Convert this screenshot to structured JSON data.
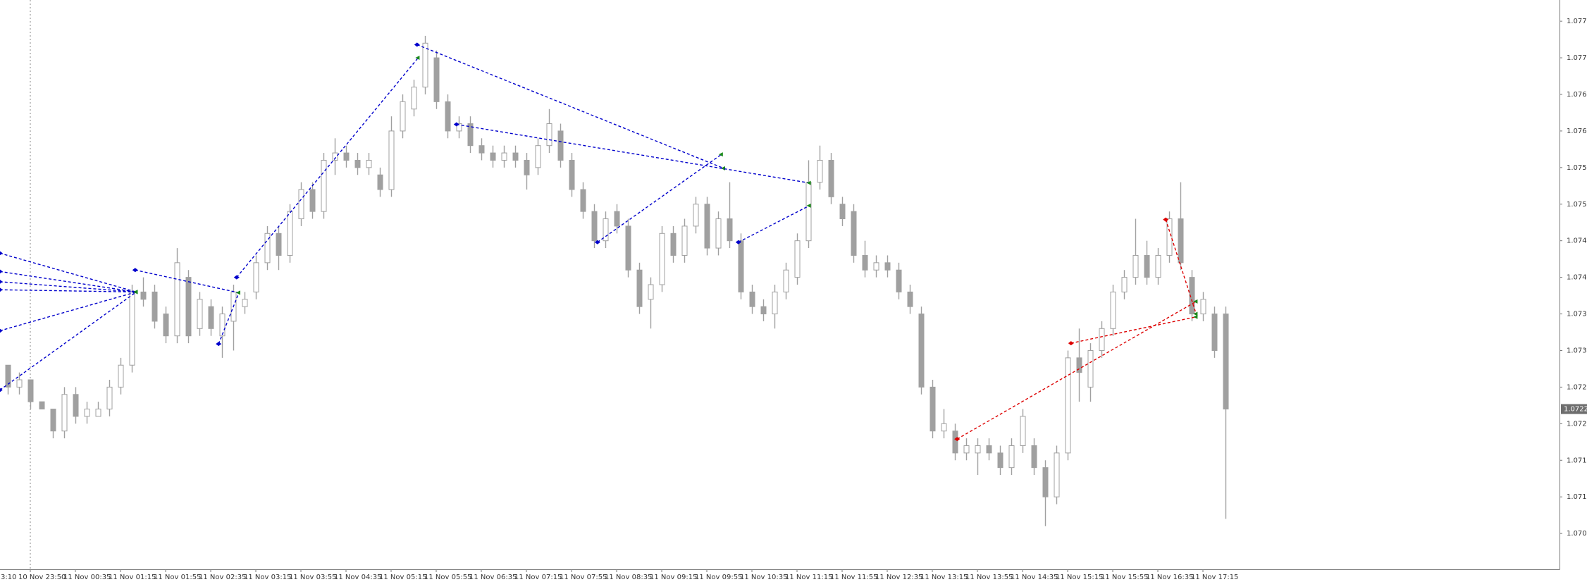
{
  "chart_data": {
    "type": "candlestick",
    "categories": [
      "3:10",
      null,
      null,
      null,
      "10 Nov 23:50",
      null,
      null,
      null,
      "11 Nov 00:35",
      null,
      null,
      null,
      "11 Nov 01:15",
      null,
      null,
      null,
      "11 Nov 01:55",
      null,
      null,
      null,
      "11 Nov 02:35",
      null,
      null,
      null,
      "11 Nov 03:15",
      null,
      null,
      null,
      "11 Nov 03:55",
      null,
      null,
      null,
      "11 Nov 04:35",
      null,
      null,
      null,
      "11 Nov 05:15",
      null,
      null,
      null,
      "11 Nov 05:55",
      null,
      null,
      null,
      "11 Nov 06:35",
      null,
      null,
      null,
      "11 Nov 07:15",
      null,
      null,
      null,
      "11 Nov 07:55",
      null,
      null,
      null,
      "11 Nov 08:35",
      null,
      null,
      null,
      "11 Nov 09:15",
      null,
      null,
      null,
      "11 Nov 09:55",
      null,
      null,
      null,
      "11 Nov 10:35",
      null,
      null,
      null,
      "11 Nov 11:15",
      null,
      null,
      null,
      "11 Nov 11:55",
      null,
      null,
      null,
      "11 Nov 12:35",
      null,
      null,
      null,
      "11 Nov 13:15",
      null,
      null,
      null,
      "11 Nov 13:55",
      null,
      null,
      null,
      "11 Nov 14:35",
      null,
      null,
      null,
      "11 Nov 15:15",
      null,
      null,
      null,
      "11 Nov 15:55",
      null,
      null,
      null,
      "11 Nov 16:35",
      null,
      null,
      null,
      "11 Nov 17:15",
      null,
      null
    ],
    "open": [
      null,
      1.0726,
      1.0728,
      1.0725,
      1.0726,
      1.0723,
      1.0722,
      1.0719,
      1.0724,
      1.0721,
      1.0721,
      1.0722,
      1.0725,
      1.0728,
      1.0738,
      1.0738,
      1.0735,
      1.0732,
      1.074,
      1.0733,
      1.0736,
      1.0732,
      1.0734,
      1.0736,
      1.0738,
      1.0742,
      1.0746,
      1.0743,
      1.0748,
      1.0752,
      1.0749,
      1.0756,
      1.0757,
      1.0756,
      1.0755,
      1.0754,
      1.0752,
      1.076,
      1.0763,
      1.0766,
      1.077,
      1.0764,
      1.076,
      1.0761,
      1.0758,
      1.0757,
      1.0756,
      1.0757,
      1.0756,
      1.0755,
      1.0758,
      1.076,
      1.0756,
      1.0752,
      1.0749,
      1.0745,
      1.0749,
      1.0747,
      1.0741,
      1.0737,
      1.0739,
      1.0746,
      1.0743,
      1.0747,
      1.075,
      1.0744,
      1.0748,
      1.0745,
      1.0738,
      1.0736,
      1.0735,
      1.0738,
      1.074,
      1.0745,
      1.0753,
      1.0756,
      1.075,
      1.0749,
      1.0743,
      1.0741,
      1.0742,
      1.0741,
      1.0738,
      1.0735,
      1.0725,
      1.0719,
      1.0719,
      1.0716,
      1.0716,
      1.0717,
      1.0716,
      1.0714,
      1.0717,
      1.0717,
      1.0714,
      1.071,
      1.0716,
      1.0729,
      1.0725,
      1.073,
      1.0733,
      1.0738,
      1.074,
      1.0743,
      1.074,
      1.0743,
      1.0748,
      1.074,
      1.0735,
      1.0735,
      1.0735
    ],
    "high": [
      null,
      1.0729,
      1.0728,
      1.0727,
      1.0726,
      1.0723,
      1.0722,
      1.0725,
      1.0725,
      1.0723,
      1.0723,
      1.0726,
      1.0729,
      1.0739,
      1.074,
      1.0739,
      1.0736,
      1.0744,
      1.0741,
      1.0738,
      1.0737,
      1.0736,
      1.0739,
      1.0738,
      1.0743,
      1.0747,
      1.0747,
      1.075,
      1.0753,
      1.0753,
      1.0757,
      1.0759,
      1.0758,
      1.0757,
      1.0757,
      1.0755,
      1.0762,
      1.0765,
      1.0767,
      1.0773,
      1.0771,
      1.0765,
      1.0762,
      1.0762,
      1.0759,
      1.0758,
      1.0758,
      1.0758,
      1.0757,
      1.0759,
      1.0763,
      1.0761,
      1.0757,
      1.0753,
      1.075,
      1.0749,
      1.075,
      1.0748,
      1.0742,
      1.074,
      1.0747,
      1.0747,
      1.0748,
      1.0751,
      1.0751,
      1.0749,
      1.0753,
      1.0746,
      1.0739,
      1.0737,
      1.0739,
      1.0742,
      1.0746,
      1.0756,
      1.0758,
      1.0757,
      1.0751,
      1.075,
      1.0745,
      1.0743,
      1.0743,
      1.0742,
      1.0739,
      1.0736,
      1.0726,
      1.0722,
      1.072,
      1.0718,
      1.0718,
      1.0718,
      1.0717,
      1.0718,
      1.0722,
      1.0718,
      1.0715,
      1.0717,
      1.073,
      1.0733,
      1.0731,
      1.0734,
      1.0739,
      1.0741,
      1.0748,
      1.0745,
      1.0744,
      1.0749,
      1.0753,
      1.0741,
      1.0738,
      1.0736,
      1.0736
    ],
    "low": [
      null,
      1.0725,
      1.0724,
      1.0724,
      1.0722,
      1.0722,
      1.0718,
      1.0718,
      1.072,
      1.072,
      1.0721,
      1.0721,
      1.0724,
      1.0727,
      1.0736,
      1.0733,
      1.0731,
      1.0731,
      1.0731,
      1.0732,
      1.0732,
      1.0729,
      1.073,
      1.0735,
      1.0737,
      1.0741,
      1.0741,
      1.0742,
      1.0747,
      1.0748,
      1.0748,
      1.0754,
      1.0755,
      1.0754,
      1.0754,
      1.0751,
      1.0751,
      1.0759,
      1.0762,
      1.0765,
      1.0763,
      1.0759,
      1.0759,
      1.0757,
      1.0756,
      1.0755,
      1.0755,
      1.0755,
      1.0752,
      1.0754,
      1.0757,
      1.0755,
      1.0751,
      1.0748,
      1.0744,
      1.0744,
      1.0746,
      1.074,
      1.0735,
      1.0733,
      1.0738,
      1.0742,
      1.0742,
      1.0746,
      1.0743,
      1.0743,
      1.0744,
      1.0737,
      1.0735,
      1.0734,
      1.0733,
      1.0737,
      1.0739,
      1.0744,
      1.0752,
      1.075,
      1.0747,
      1.0742,
      1.074,
      1.074,
      1.074,
      1.0737,
      1.0735,
      1.0724,
      1.0718,
      1.0718,
      1.0715,
      1.0715,
      1.0713,
      1.0715,
      1.0713,
      1.0713,
      1.0716,
      1.0713,
      1.0706,
      1.0709,
      1.0715,
      1.0723,
      1.0723,
      1.0729,
      1.0732,
      1.0737,
      1.0739,
      1.0739,
      1.0739,
      1.0742,
      1.0741,
      1.0734,
      1.0734,
      1.0729,
      1.0707
    ],
    "close": [
      null,
      1.0728,
      1.0725,
      1.0726,
      1.0723,
      1.0722,
      1.0719,
      1.0724,
      1.0721,
      1.0722,
      1.0722,
      1.0725,
      1.0728,
      1.0738,
      1.0737,
      1.0734,
      1.0732,
      1.0742,
      1.0732,
      1.0737,
      1.0733,
      1.0735,
      1.0738,
      1.0737,
      1.0742,
      1.0746,
      1.0743,
      1.0749,
      1.0752,
      1.0749,
      1.0756,
      1.0757,
      1.0756,
      1.0755,
      1.0756,
      1.0752,
      1.076,
      1.0764,
      1.0766,
      1.0772,
      1.0764,
      1.076,
      1.0761,
      1.0758,
      1.0757,
      1.0756,
      1.0757,
      1.0756,
      1.0754,
      1.0758,
      1.0761,
      1.0756,
      1.0752,
      1.0749,
      1.0745,
      1.0748,
      1.0747,
      1.0741,
      1.0736,
      1.0739,
      1.0746,
      1.0743,
      1.0747,
      1.075,
      1.0744,
      1.0748,
      1.0745,
      1.0738,
      1.0736,
      1.0735,
      1.0738,
      1.0741,
      1.0745,
      1.0753,
      1.0756,
      1.0751,
      1.0748,
      1.0743,
      1.0741,
      1.0742,
      1.0741,
      1.0738,
      1.0736,
      1.0725,
      1.0719,
      1.072,
      1.0716,
      1.0717,
      1.0717,
      1.0716,
      1.0714,
      1.0717,
      1.0721,
      1.0714,
      1.071,
      1.0716,
      1.0729,
      1.0727,
      1.073,
      1.0733,
      1.0738,
      1.074,
      1.0743,
      1.074,
      1.0743,
      1.0748,
      1.0742,
      1.0735,
      1.0737,
      1.073,
      1.0722
    ],
    "up_color": "#ffffff",
    "down_color": "#a0a0a0",
    "wick_color": "#a0a0a0",
    "ylim": [
      1.07001,
      1.07779
    ],
    "yticks": [
      1.0705,
      {
        "value": 1.071,
        "label": "1.0710"
      },
      1.0715,
      {
        "value": 1.072,
        "label": "1.0720"
      },
      1.0725,
      {
        "value": 1.073,
        "label": "1.0730"
      },
      1.0735,
      {
        "value": 1.074,
        "label": "1.0740"
      },
      1.0745,
      {
        "value": 1.075,
        "label": "1.0750"
      },
      1.0755,
      {
        "value": 1.076,
        "label": "1.0760"
      },
      1.0765,
      {
        "value": 1.077,
        "label": "1.0770"
      },
      1.0775
    ],
    "last_price": 1.0722,
    "trades": [
      {
        "x": [
          1.3,
          13.4
        ],
        "y": [
          1.07433,
          1.0738
        ],
        "color": "#0000cc"
      },
      {
        "x": [
          1.3,
          13.4
        ],
        "y": [
          1.07408,
          1.0738
        ],
        "color": "#0000cc"
      },
      {
        "x": [
          1.3,
          13.4
        ],
        "y": [
          1.07394,
          1.0738
        ],
        "color": "#0000cc"
      },
      {
        "x": [
          1.3,
          13.4
        ],
        "y": [
          1.07383,
          1.0738
        ],
        "color": "#0000cc"
      },
      {
        "x": [
          1.3,
          13.4
        ],
        "y": [
          1.07327,
          1.0738
        ],
        "color": "#0000cc"
      },
      {
        "x": [
          1.3,
          13.4
        ],
        "y": [
          1.07246,
          1.0738
        ],
        "color": "#0000cc"
      },
      {
        "x": [
          13.3,
          22.5
        ],
        "y": [
          1.0741,
          1.07379
        ],
        "color": "#0000cc"
      },
      {
        "x": [
          20.7,
          22.5
        ],
        "y": [
          1.07309,
          1.07379
        ],
        "color": "#0000cc"
      },
      {
        "x": [
          22.3,
          38.4
        ],
        "y": [
          1.074,
          1.077
        ],
        "color": "#0000cc"
      },
      {
        "x": [
          38.3,
          65.5
        ],
        "y": [
          1.07718,
          1.07549
        ],
        "color": "#0000cc"
      },
      {
        "x": [
          41.8,
          73.1
        ],
        "y": [
          1.07609,
          1.07529
        ],
        "color": "#0000cc"
      },
      {
        "x": [
          54.3,
          65.3
        ],
        "y": [
          1.07448,
          1.07568
        ],
        "color": "#0000cc"
      },
      {
        "x": [
          66.8,
          73.1
        ],
        "y": [
          1.07448,
          1.07498
        ],
        "color": "#0000cc"
      },
      {
        "x": [
          86.2,
          107.4
        ],
        "y": [
          1.07179,
          1.07367
        ],
        "color": "#dd0000"
      },
      {
        "x": [
          96.3,
          107.4
        ],
        "y": [
          1.0731,
          1.07346
        ],
        "color": "#dd0000"
      },
      {
        "x": [
          104.7,
          107.4
        ],
        "y": [
          1.07479,
          1.0735
        ],
        "color": "#dd0000"
      }
    ]
  }
}
